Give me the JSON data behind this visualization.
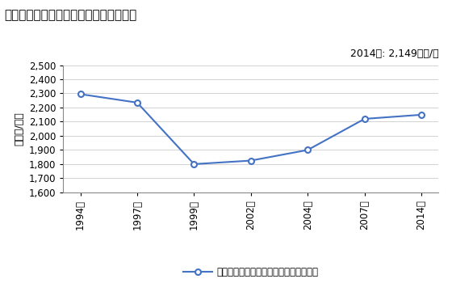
{
  "title": "商業の従業者一人当たり年間商品販売額",
  "ylabel": "［万円/人］",
  "annotation": "2014年: 2,149万円/人",
  "legend_label": "商業の従業者一人当たり年間商品販売額",
  "years": [
    "1994年",
    "1997年",
    "1999年",
    "2002年",
    "2004年",
    "2007年",
    "2014年"
  ],
  "values": [
    2295,
    2235,
    1800,
    1825,
    1900,
    2120,
    2149
  ],
  "ylim": [
    1600,
    2500
  ],
  "yticks": [
    1600,
    1700,
    1800,
    1900,
    2000,
    2100,
    2200,
    2300,
    2400,
    2500
  ],
  "line_color": "#4472C4",
  "marker_color": "#4472C4",
  "bg_color": "#FFFFFF",
  "plot_bg_color": "#FFFFFF",
  "title_fontsize": 11,
  "label_fontsize": 9,
  "tick_fontsize": 8.5,
  "annotation_fontsize": 9
}
